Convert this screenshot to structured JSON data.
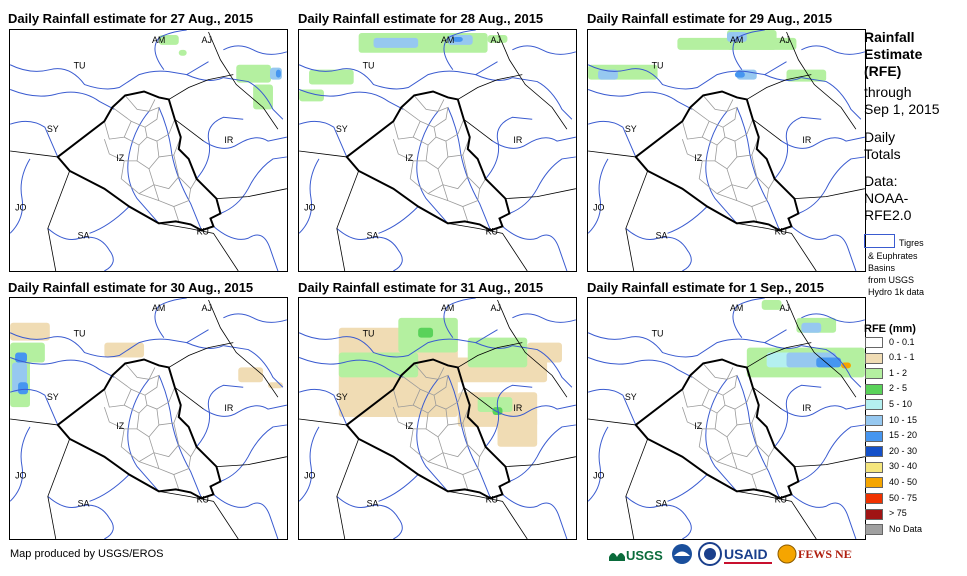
{
  "panels": [
    {
      "title": "Daily Rainfall estimate for 27 Aug., 2015"
    },
    {
      "title": "Daily Rainfall estimate for 28 Aug., 2015"
    },
    {
      "title": "Daily Rainfall estimate for 29 Aug., 2015"
    },
    {
      "title": "Daily Rainfall estimate for 30 Aug., 2015"
    },
    {
      "title": "Daily Rainfall estimate for 31 Aug., 2015"
    },
    {
      "title": "Daily Rainfall estimate for 1 Sep., 2015"
    }
  ],
  "country_labels": [
    "AM",
    "AJ",
    "TU",
    "SY",
    "IR",
    "IZ",
    "JO",
    "SA",
    "KU"
  ],
  "sidebar": {
    "title_line1": "Rainfall",
    "title_line2": "Estimate",
    "title_line3": "(RFE)",
    "through": "through",
    "date": "Sep 1, 2015",
    "daily": "Daily",
    "totals": "Totals",
    "data_label": "Data:",
    "source_line1": "NOAA-",
    "source_line2": "RFE2.0",
    "basin_label1": "Tigres",
    "basin_label2": "& Euphrates",
    "basin_label3": "Basins",
    "basin_label4": "from USGS",
    "basin_label5": "Hydro 1k data",
    "legend_title": "RFE (mm)",
    "legend": [
      {
        "label": "0 - 0.1",
        "color": "#ffffff"
      },
      {
        "label": "0.1 - 1",
        "color": "#f0dcb4"
      },
      {
        "label": "1 - 2",
        "color": "#b4f0a0"
      },
      {
        "label": "2 - 5",
        "color": "#5ad25a"
      },
      {
        "label": "5 - 10",
        "color": "#b4f0f0"
      },
      {
        "label": "10 - 15",
        "color": "#96c8f0"
      },
      {
        "label": "15 - 20",
        "color": "#4696f0"
      },
      {
        "label": "20 - 30",
        "color": "#1450c8"
      },
      {
        "label": "30 - 40",
        "color": "#f5e67d"
      },
      {
        "label": "40 - 50",
        "color": "#f5a500"
      },
      {
        "label": "50 - 75",
        "color": "#f03200"
      },
      {
        "label": "> 75",
        "color": "#a01414"
      },
      {
        "label": "No Data",
        "color": "#a0a0a0"
      }
    ]
  },
  "footer": {
    "credit": "Map produced by USGS/EROS",
    "usgs": "USGS",
    "usaid": "USAID",
    "fews": "FEWS NET"
  }
}
